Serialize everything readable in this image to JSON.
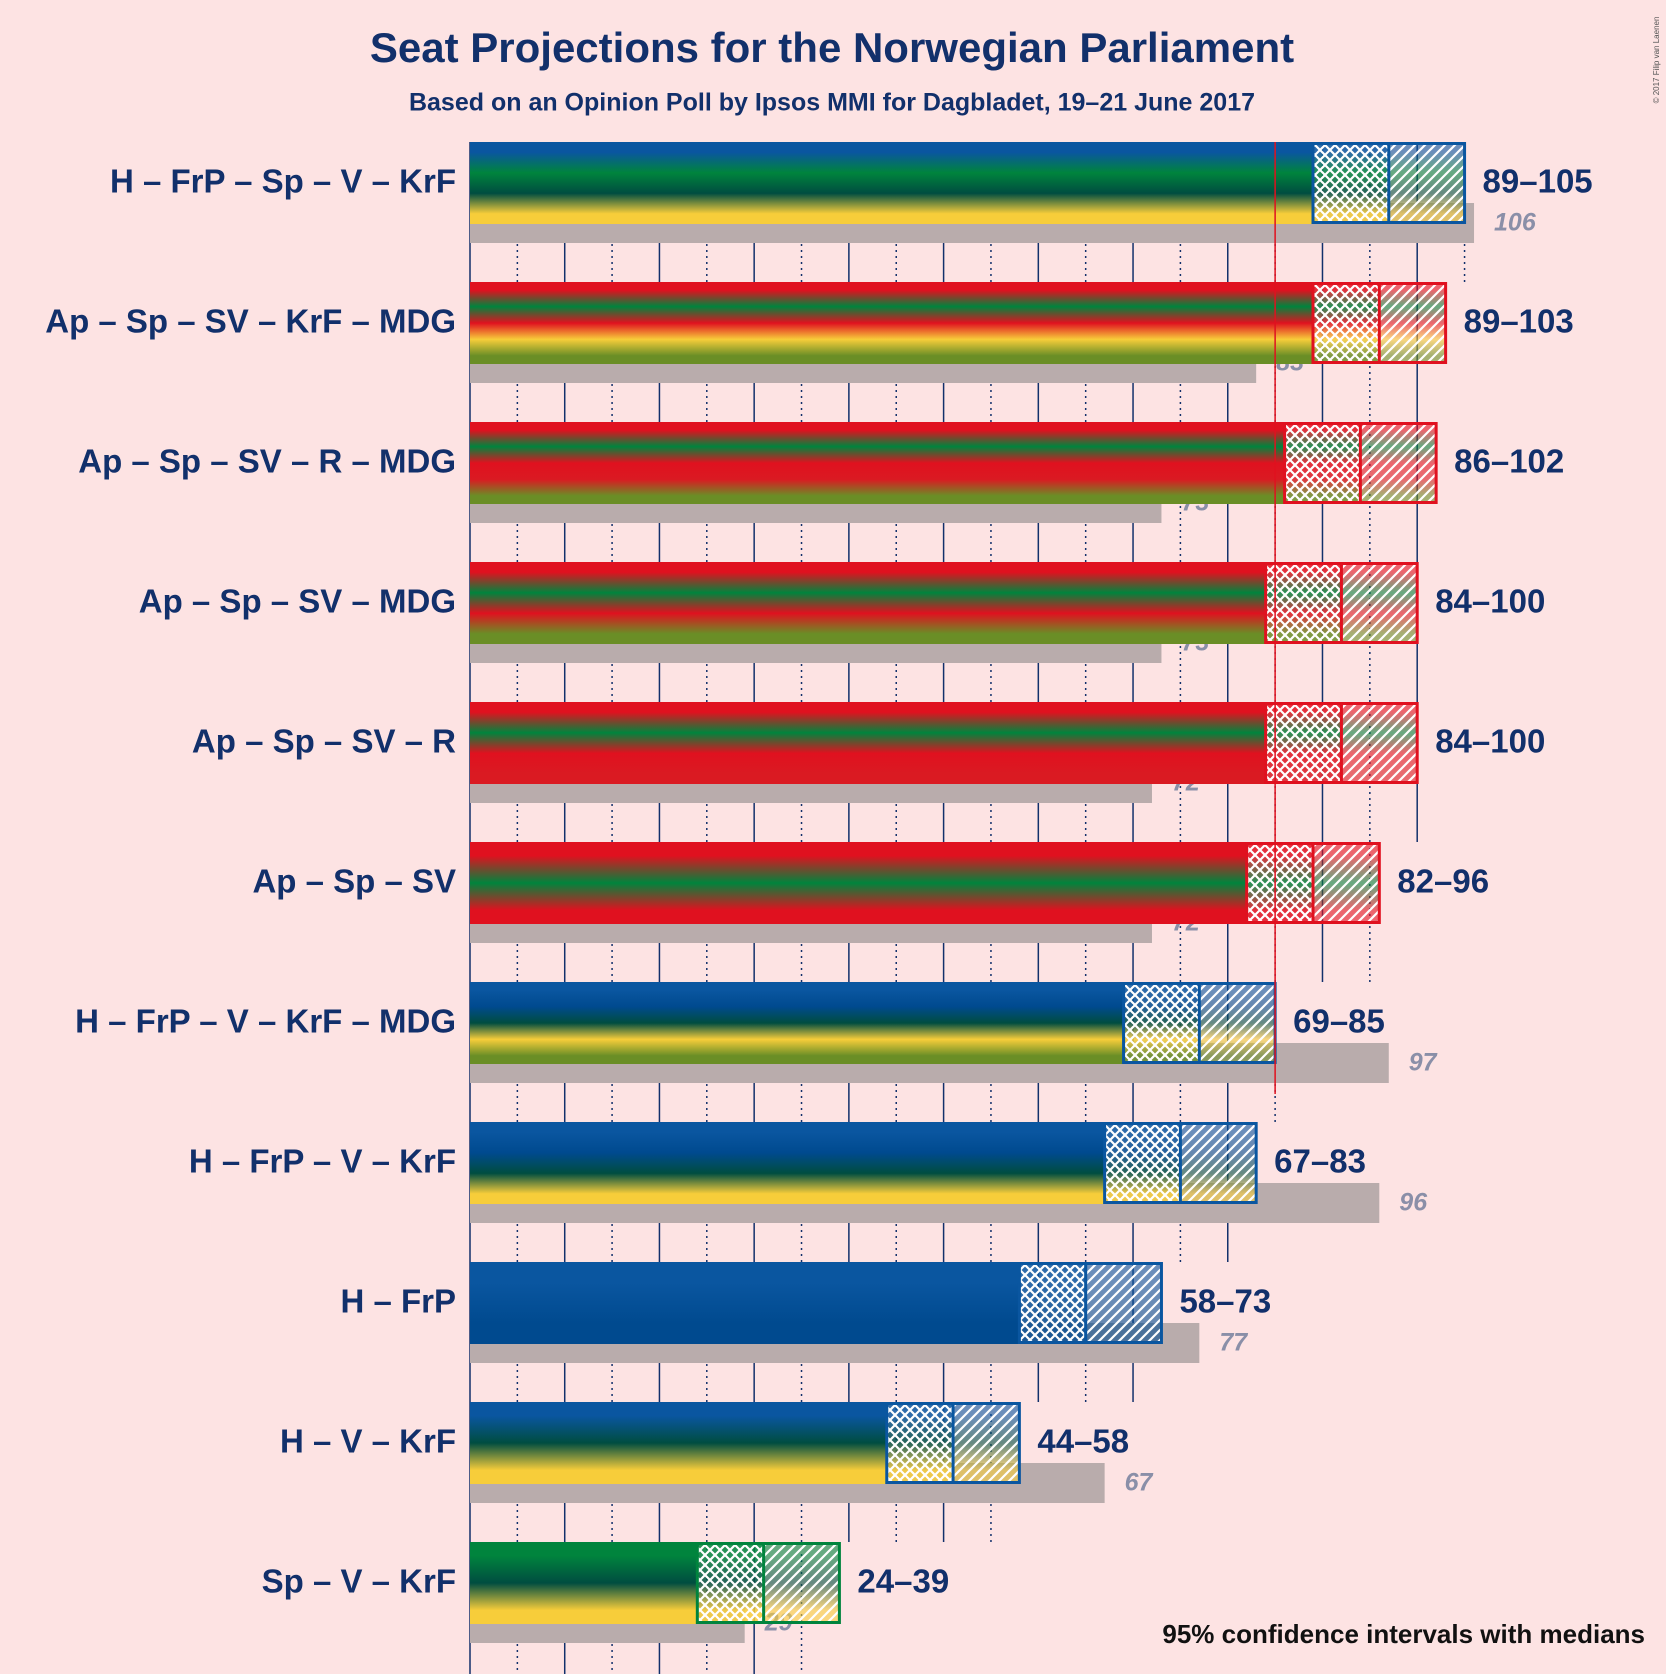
{
  "chart_data": {
    "type": "range",
    "title": "Seat Projections for the Norwegian Parliament",
    "subtitle": "Based on an Opinion Poll by Ipsos MMI for Dagbladet, 19–21 June 2017",
    "footnote": "95% confidence intervals with medians",
    "copyright": "© 2017 Filip van Laenen",
    "majority": 85,
    "xlim": [
      0,
      105
    ],
    "xticks": [
      0,
      5,
      10,
      15,
      20,
      25,
      30,
      35,
      40,
      45,
      50,
      55,
      60,
      65,
      70,
      75,
      80,
      85,
      90,
      95,
      100,
      105
    ],
    "rows": [
      {
        "name": "H – FrP – Sp – V – KrF",
        "colors": [
          "#0a56a0",
          "#00843d",
          "#004d40",
          "#f7cd3a"
        ],
        "low": 89,
        "median": 97,
        "high": 105,
        "range_label": "89–105",
        "last": 106
      },
      {
        "name": "Ap – Sp – SV – KrF – MDG",
        "colors": [
          "#e0111f",
          "#00843d",
          "#e0111f",
          "#f7cd3a",
          "#6a8e26"
        ],
        "low": 89,
        "median": 96,
        "high": 103,
        "range_label": "89–103",
        "last": 83
      },
      {
        "name": "Ap – Sp – SV – R – MDG",
        "colors": [
          "#e0111f",
          "#00843d",
          "#e0111f",
          "#da1a22",
          "#6a8e26"
        ],
        "low": 86,
        "median": 94,
        "high": 102,
        "range_label": "86–102",
        "last": 73
      },
      {
        "name": "Ap – Sp – SV – MDG",
        "colors": [
          "#e0111f",
          "#00843d",
          "#e0111f",
          "#6a8e26"
        ],
        "low": 84,
        "median": 92,
        "high": 100,
        "range_label": "84–100",
        "last": 73
      },
      {
        "name": "Ap – Sp – SV – R",
        "colors": [
          "#e0111f",
          "#00843d",
          "#e0111f",
          "#da1a22"
        ],
        "low": 84,
        "median": 92,
        "high": 100,
        "range_label": "84–100",
        "last": 72
      },
      {
        "name": "Ap – Sp – SV",
        "colors": [
          "#e0111f",
          "#00843d",
          "#e0111f"
        ],
        "low": 82,
        "median": 89,
        "high": 96,
        "range_label": "82–96",
        "last": 72
      },
      {
        "name": "H – FrP – V – KrF – MDG",
        "colors": [
          "#0a56a0",
          "#004a8f",
          "#004d40",
          "#f7cd3a",
          "#6a8e26"
        ],
        "low": 69,
        "median": 77,
        "high": 85,
        "range_label": "69–85",
        "last": 97
      },
      {
        "name": "H – FrP – V – KrF",
        "colors": [
          "#0a56a0",
          "#004a8f",
          "#004d40",
          "#f7cd3a"
        ],
        "low": 67,
        "median": 75,
        "high": 83,
        "range_label": "67–83",
        "last": 96
      },
      {
        "name": "H – FrP",
        "colors": [
          "#0a56a0",
          "#004a8f"
        ],
        "low": 58,
        "median": 65,
        "high": 73,
        "range_label": "58–73",
        "last": 77
      },
      {
        "name": "H – V – KrF",
        "colors": [
          "#0a56a0",
          "#004d40",
          "#f7cd3a"
        ],
        "low": 44,
        "median": 51,
        "high": 58,
        "range_label": "44–58",
        "last": 67
      },
      {
        "name": "Sp – V – KrF",
        "colors": [
          "#00843d",
          "#004d40",
          "#f7cd3a"
        ],
        "low": 24,
        "median": 31,
        "high": 39,
        "range_label": "24–39",
        "last": 29
      }
    ]
  }
}
